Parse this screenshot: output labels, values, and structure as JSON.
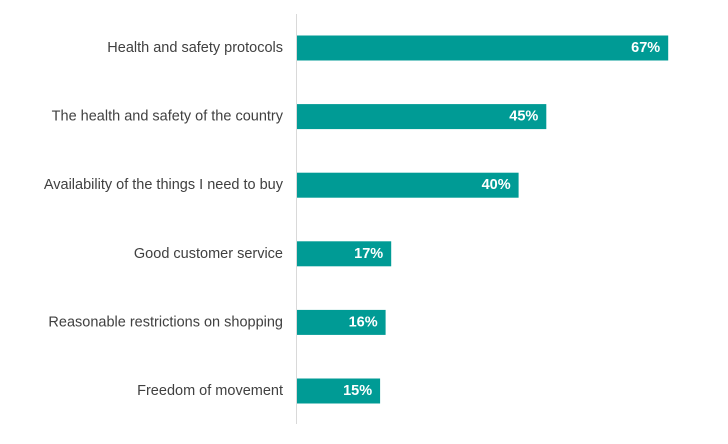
{
  "chart_data": {
    "type": "bar",
    "orientation": "horizontal",
    "categories": [
      "Health and safety protocols",
      "The health and safety of the country",
      "Availability of the things I need to buy",
      "Good customer service",
      "Reasonable restrictions on shopping",
      "Freedom of movement"
    ],
    "values": [
      67,
      45,
      40,
      17,
      16,
      15
    ],
    "value_labels": [
      "67%",
      "45%",
      "40%",
      "17%",
      "16%",
      "15%"
    ],
    "unit": "%",
    "xlim": [
      0,
      74
    ],
    "grid": false,
    "legend": "none",
    "colors": {
      "bar": "#009B95",
      "axis": "#D9D9D9",
      "category_text": "#404040",
      "value_text": "#FFFFFF"
    }
  }
}
